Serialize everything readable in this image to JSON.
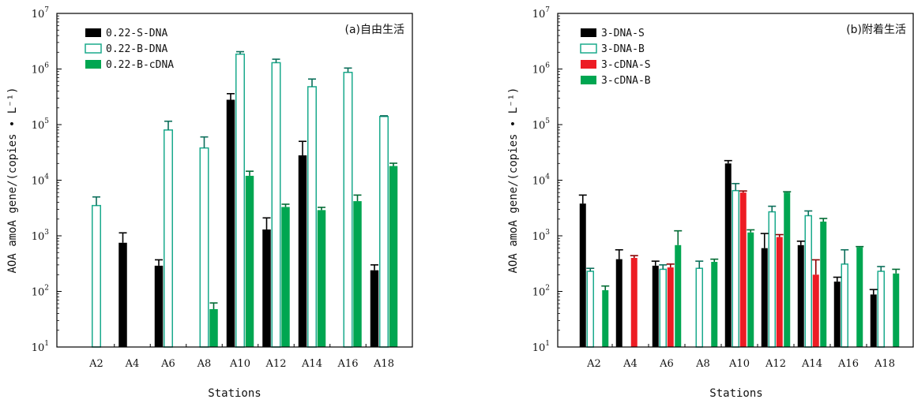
{
  "chart_data": [
    {
      "type": "bar",
      "title": "(a)自由生活",
      "xlabel": "Stations",
      "ylabel": "AOA amoA gene/(copies • L⁻¹)",
      "yscale": "log",
      "ylim": [
        10,
        10000000
      ],
      "yticks": [
        {
          "value": 10,
          "base": "10",
          "exp": "1"
        },
        {
          "value": 100,
          "base": "10",
          "exp": "2"
        },
        {
          "value": 1000,
          "base": "10",
          "exp": "3"
        },
        {
          "value": 10000,
          "base": "10",
          "exp": "4"
        },
        {
          "value": 100000,
          "base": "10",
          "exp": "5"
        },
        {
          "value": 1000000,
          "base": "10",
          "exp": "6"
        },
        {
          "value": 10000000,
          "base": "10",
          "exp": "7"
        }
      ],
      "categories": [
        "A2",
        "A4",
        "A6",
        "A8",
        "A10",
        "A12",
        "A14",
        "A16",
        "A18"
      ],
      "legend_position": "top-left",
      "series": [
        {
          "name": "0.22-S-DNA",
          "style": "filled",
          "color": "#000000",
          "values": [
            null,
            750,
            290,
            null,
            280000,
            1300,
            28000,
            null,
            240
          ],
          "errors": [
            null,
            380,
            80,
            null,
            80000,
            800,
            22000,
            null,
            60
          ]
        },
        {
          "name": "0.22-B-DNA",
          "style": "hollow",
          "color": "#1aaa8c",
          "values": [
            3500,
            null,
            80000,
            38000,
            1850000,
            1300000,
            480000,
            870000,
            140000
          ],
          "errors": [
            1500,
            null,
            35000,
            22000,
            200000,
            200000,
            180000,
            170000,
            4000
          ]
        },
        {
          "name": "0.22-B-cDNA",
          "style": "filled",
          "color": "#00a651",
          "values": [
            null,
            null,
            null,
            48,
            12000,
            3300,
            2900,
            4200,
            18000
          ],
          "errors": [
            null,
            null,
            null,
            14,
            2500,
            400,
            350,
            1200,
            2200
          ]
        }
      ]
    },
    {
      "type": "bar",
      "title": "(b)附着生活",
      "xlabel": "Stations",
      "ylabel": "AOA amoA gene/(copies • L⁻¹)",
      "yscale": "log",
      "ylim": [
        10,
        10000000
      ],
      "yticks": [
        {
          "value": 10,
          "base": "10",
          "exp": "1"
        },
        {
          "value": 100,
          "base": "10",
          "exp": "2"
        },
        {
          "value": 1000,
          "base": "10",
          "exp": "3"
        },
        {
          "value": 10000,
          "base": "10",
          "exp": "4"
        },
        {
          "value": 100000,
          "base": "10",
          "exp": "5"
        },
        {
          "value": 1000000,
          "base": "10",
          "exp": "6"
        },
        {
          "value": 10000000,
          "base": "10",
          "exp": "7"
        }
      ],
      "categories": [
        "A2",
        "A4",
        "A6",
        "A8",
        "A10",
        "A12",
        "A14",
        "A16",
        "A18"
      ],
      "legend_position": "top-left",
      "series": [
        {
          "name": "3-DNA-S",
          "style": "filled",
          "color": "#000000",
          "values": [
            3800,
            380,
            290,
            null,
            20000,
            600,
            680,
            150,
            88
          ],
          "errors": [
            1600,
            180,
            60,
            null,
            2500,
            500,
            120,
            30,
            20
          ]
        },
        {
          "name": "3-DNA-B",
          "style": "hollow",
          "color": "#1aaa8c",
          "values": [
            230,
            null,
            250,
            260,
            6500,
            2700,
            2300,
            310,
            230
          ],
          "errors": [
            30,
            null,
            50,
            90,
            2200,
            700,
            500,
            250,
            50
          ]
        },
        {
          "name": "3-cDNA-S",
          "style": "filled",
          "color": "#ed1c24",
          "values": [
            null,
            400,
            270,
            null,
            6000,
            950,
            200,
            null,
            null
          ],
          "errors": [
            null,
            40,
            40,
            null,
            400,
            100,
            170,
            null,
            null
          ]
        },
        {
          "name": "3-cDNA-B",
          "style": "filled",
          "color": "#00a651",
          "values": [
            105,
            null,
            680,
            340,
            1150,
            6000,
            1800,
            620,
            210
          ],
          "errors": [
            20,
            null,
            550,
            40,
            130,
            200,
            250,
            20,
            40
          ]
        }
      ]
    }
  ]
}
